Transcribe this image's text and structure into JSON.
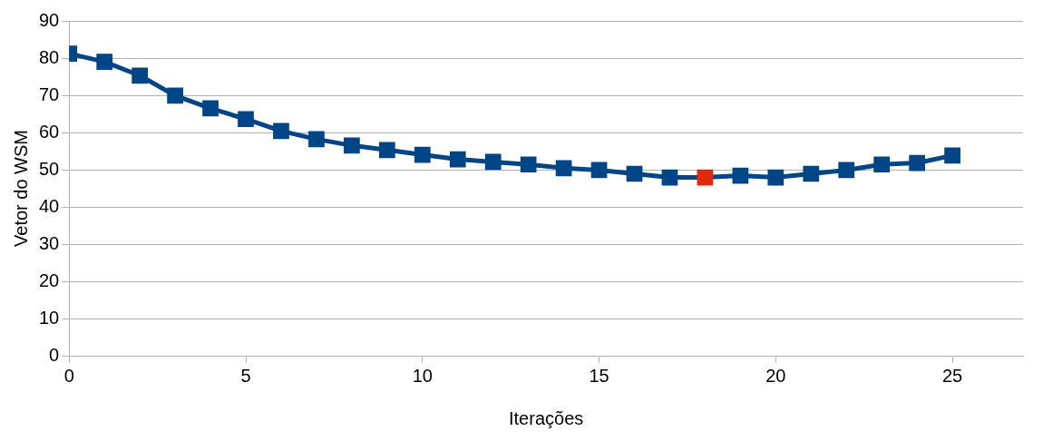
{
  "chart_data": {
    "type": "line",
    "xlabel": "Iterações",
    "ylabel": "Vetor do WSM",
    "x": [
      0,
      1,
      2,
      3,
      4,
      5,
      6,
      7,
      8,
      9,
      10,
      11,
      12,
      13,
      14,
      15,
      16,
      17,
      18,
      19,
      20,
      21,
      22,
      23,
      24,
      25
    ],
    "series": [
      {
        "color": "#004586",
        "colors": [
          "#004586",
          "#004586",
          "#004586",
          "#004586",
          "#004586",
          "#004586",
          "#004586",
          "#004586",
          "#004586",
          "#004586",
          "#004586",
          "#004586",
          "#004586",
          "#004586",
          "#004586",
          "#004586",
          "#004586",
          "#004586",
          "#e0280f",
          "#004586",
          "#004586",
          "#004586",
          "#004586",
          "#004586",
          "#004586",
          "#004586"
        ],
        "values": [
          81.2,
          79.0,
          75.3,
          69.9,
          66.5,
          63.6,
          60.4,
          58.2,
          56.5,
          55.3,
          54.0,
          52.8,
          52.1,
          51.4,
          50.4,
          49.9,
          48.9,
          47.9,
          47.9,
          48.4,
          47.9,
          48.9,
          49.9,
          51.4,
          51.8,
          53.8
        ]
      }
    ],
    "xlim": [
      0,
      27
    ],
    "xticks": [
      0,
      5,
      10,
      15,
      20,
      25
    ],
    "ylim": [
      0,
      90
    ],
    "yticks": [
      0,
      10,
      20,
      30,
      40,
      50,
      60,
      70,
      80,
      90
    ],
    "grid": "y",
    "legend": false,
    "marker": "square",
    "line_style": "solid"
  }
}
